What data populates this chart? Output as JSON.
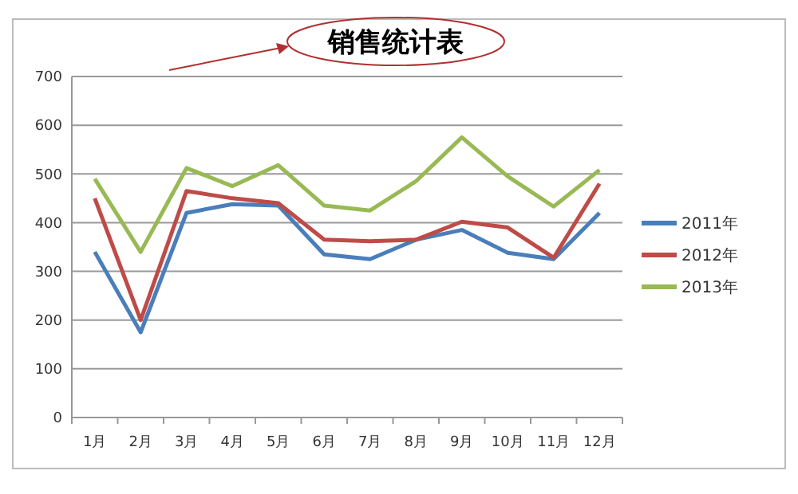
{
  "chart_data": {
    "type": "line",
    "title": "销售统计表",
    "categories": [
      "1月",
      "2月",
      "3月",
      "4月",
      "5月",
      "6月",
      "7月",
      "8月",
      "9月",
      "10月",
      "11月",
      "12月"
    ],
    "series": [
      {
        "name": "2011年",
        "color": "#4a7ebb",
        "values": [
          340,
          175,
          420,
          438,
          435,
          335,
          325,
          365,
          385,
          338,
          325,
          420
        ]
      },
      {
        "name": "2012年",
        "color": "#be4b48",
        "values": [
          450,
          200,
          465,
          450,
          440,
          365,
          362,
          365,
          402,
          390,
          328,
          480
        ]
      },
      {
        "name": "2013年",
        "color": "#98b954",
        "values": [
          490,
          340,
          512,
          475,
          518,
          435,
          425,
          485,
          575,
          495,
          433,
          508
        ]
      }
    ],
    "ylim": [
      0,
      700
    ],
    "yticks": [
      0,
      100,
      200,
      300,
      400,
      500,
      600,
      700
    ],
    "grid": "y",
    "legend": "right",
    "marker": "none",
    "line_style": "solid"
  }
}
